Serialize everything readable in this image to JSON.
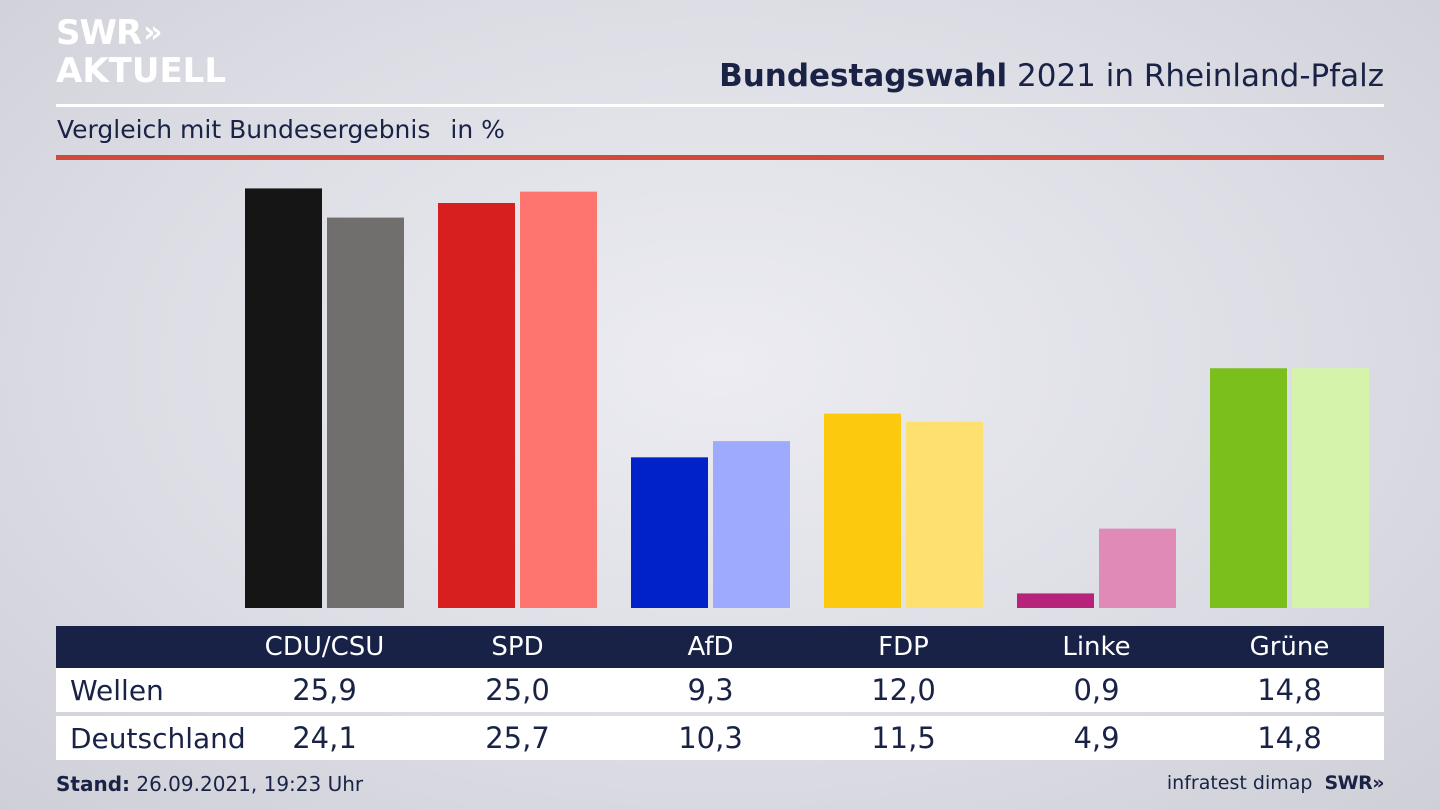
{
  "brand": {
    "logo_line1": "SWR",
    "logo_line2": "AKTUELL",
    "logo_chevrons": "»"
  },
  "header": {
    "title_bold": "Bundestagswahl",
    "title_rest": " 2021 in Rheinland-Pfalz"
  },
  "subtitle": {
    "text": "Vergleich mit Bundesergebnis",
    "unit": "in %"
  },
  "colors": {
    "accent_rule": "#d0493a",
    "table_header_bg": "#182247",
    "text": "#1a2346"
  },
  "chart_data": {
    "type": "bar",
    "title": "Bundestagswahl 2021 in Rheinland-Pfalz",
    "subtitle": "Vergleich mit Bundesergebnis",
    "unit": "in %",
    "categories": [
      "CDU/CSU",
      "SPD",
      "AfD",
      "FDP",
      "Linke",
      "Grüne"
    ],
    "series": [
      {
        "name": "Wellen",
        "values": [
          25.9,
          25.0,
          9.3,
          12.0,
          0.9,
          14.8
        ],
        "colors": [
          "#151515",
          "#d81f1f",
          "#0022c8",
          "#fcc90f",
          "#b7237a",
          "#7abf1c"
        ]
      },
      {
        "name": "Deutschland",
        "values": [
          24.1,
          25.7,
          10.3,
          11.5,
          4.9,
          14.8
        ],
        "colors": [
          "#706f6d",
          "#fe7570",
          "#9eaafe",
          "#fde070",
          "#e08ab8",
          "#d5f4aa"
        ]
      }
    ],
    "display_values": [
      [
        "25,9",
        "25,0",
        "9,3",
        "12,0",
        "0,9",
        "14,8"
      ],
      [
        "24,1",
        "25,7",
        "10,3",
        "11,5",
        "4,9",
        "14,8"
      ]
    ],
    "ylim": [
      0,
      26
    ],
    "grid": false,
    "legend": "table below chart"
  },
  "footer": {
    "stand_label": "Stand:",
    "stand_value": " 26.09.2021, 19:23 Uhr",
    "source": "infratest dimap",
    "brand": "SWR",
    "brand_chevrons": "»"
  }
}
